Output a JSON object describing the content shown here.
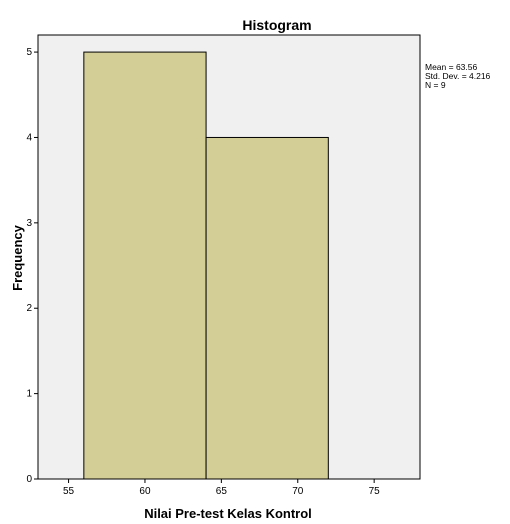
{
  "chart_data": {
    "type": "histogram",
    "title": "Histogram",
    "xlabel": "Nilai Pre-test Kelas Kontrol",
    "ylabel": "Frequency",
    "bins": [
      {
        "start": 56,
        "end": 64,
        "count": 5
      },
      {
        "start": 64,
        "end": 72,
        "count": 4
      }
    ],
    "xlim": [
      53,
      78
    ],
    "ylim": [
      0,
      5.2
    ],
    "xticks": [
      55,
      60,
      65,
      70,
      75
    ],
    "yticks": [
      0,
      1,
      2,
      3,
      4,
      5
    ],
    "grid": false,
    "bar_color": "#d3ce96",
    "plot_background": "#f0f0f0",
    "stats_box": {
      "mean": "Mean = 63.56",
      "std_dev": "Std. Dev. = 4.216",
      "n": "N = 9"
    }
  }
}
